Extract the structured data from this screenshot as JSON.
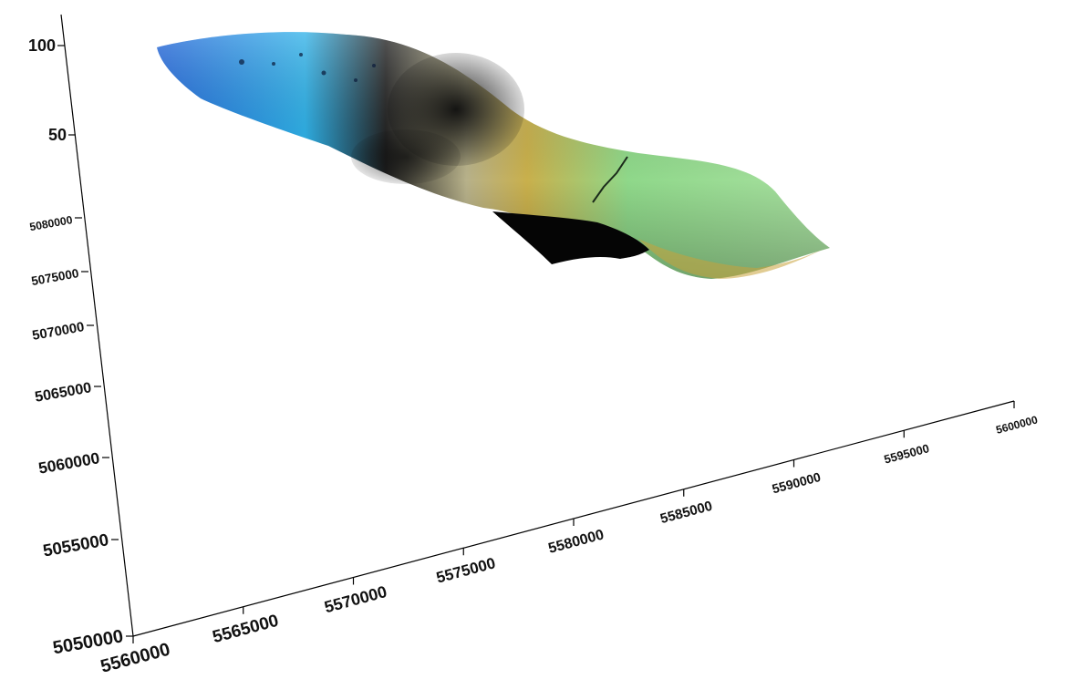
{
  "chart_data": {
    "type": "surface",
    "title": "",
    "view": "3d-perspective",
    "grid": false,
    "legend": "none",
    "colormap": [
      "#1e63d8",
      "#2bb0e8",
      "#111111",
      "#b7b18a",
      "#c9b04c",
      "#8fd88a"
    ],
    "z_axis": {
      "label": "",
      "ticks": [
        50,
        100
      ],
      "tick_labels": [
        "50",
        "100"
      ]
    },
    "y_axis": {
      "label": "",
      "ticks": [
        5050000,
        5055000,
        5060000,
        5065000,
        5070000,
        5075000,
        5080000
      ],
      "tick_labels": [
        "5050000",
        "5055000",
        "5060000",
        "5065000",
        "5070000",
        "5075000",
        "5080000"
      ]
    },
    "x_axis": {
      "label": "",
      "ticks": [
        5560000,
        5565000,
        5570000,
        5575000,
        5580000,
        5585000,
        5590000,
        5595000,
        5600000
      ],
      "tick_labels": [
        "5560000",
        "5565000",
        "5570000",
        "5575000",
        "5580000",
        "5585000",
        "5590000",
        "5595000",
        "5600000"
      ]
    }
  }
}
